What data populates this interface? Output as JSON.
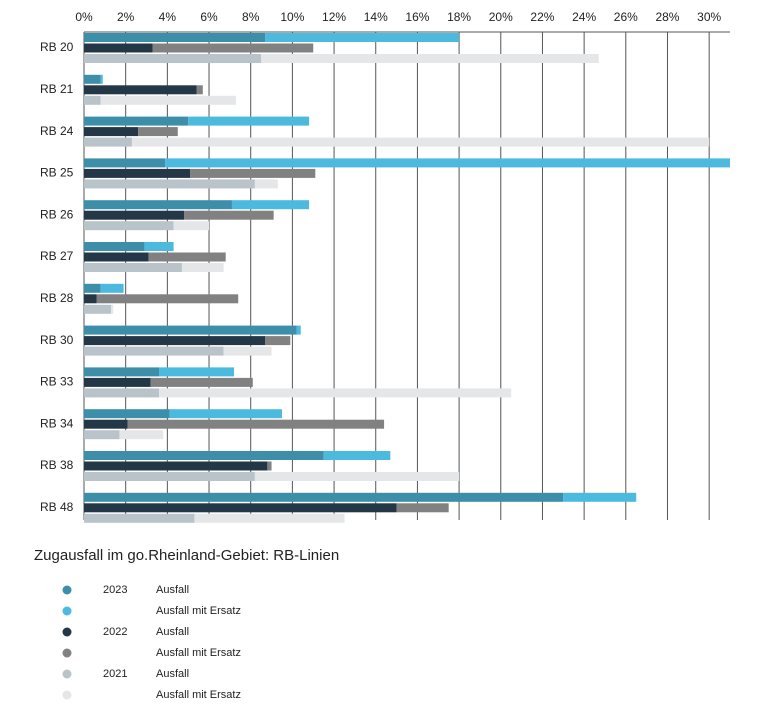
{
  "chart_data": {
    "type": "grouped-stacked-bar",
    "title": "Zugausfall im go.Rheinland-Gebiet: RB-Linien",
    "categories": [
      "RB 20",
      "RB 21",
      "RB 24",
      "RB 25",
      "RB 26",
      "RB 27",
      "RB 28",
      "RB 30",
      "RB 33",
      "RB 34",
      "RB 38",
      "RB 48"
    ],
    "xlim": [
      0,
      31
    ],
    "xticks": [
      {
        "value": 0,
        "label": "0%"
      },
      {
        "value": 2,
        "label": "2%"
      },
      {
        "value": 4,
        "label": "4%"
      },
      {
        "value": 6,
        "label": "6%"
      },
      {
        "value": 8,
        "label": "8%"
      },
      {
        "value": 10,
        "label": "10%"
      },
      {
        "value": 12,
        "label": "12%"
      },
      {
        "value": 14,
        "label": "14%"
      },
      {
        "value": 16,
        "label": "16%"
      },
      {
        "value": 18,
        "label": "18%"
      },
      {
        "value": 20,
        "label": "20%"
      },
      {
        "value": 22,
        "label": "22%"
      },
      {
        "value": 24,
        "label": "24%"
      },
      {
        "value": 26,
        "label": "26%"
      },
      {
        "value": 28,
        "label": "28%"
      },
      {
        "value": 30,
        "label": "30%"
      }
    ],
    "grid": true,
    "groups": [
      {
        "name": "2023",
        "series": [
          {
            "name": "Ausfall",
            "color": "#3d8fa9",
            "values": [
              8.7,
              0.8,
              5.0,
              3.9,
              7.1,
              2.9,
              0.8,
              10.2,
              3.6,
              4.1,
              11.5,
              23.0
            ]
          },
          {
            "name": "Ausfall mit Ersatz",
            "color": "#4cb9df",
            "values": [
              9.3,
              0.1,
              5.8,
              27.1,
              3.7,
              1.4,
              1.1,
              0.2,
              3.6,
              5.4,
              3.2,
              3.5
            ]
          }
        ]
      },
      {
        "name": "2022",
        "series": [
          {
            "name": "Ausfall",
            "color": "#243746",
            "values": [
              3.3,
              5.4,
              2.6,
              5.1,
              4.8,
              3.1,
              0.6,
              8.7,
              3.2,
              2.1,
              8.8,
              15.0
            ]
          },
          {
            "name": "Ausfall mit Ersatz",
            "color": "#818181",
            "values": [
              7.7,
              0.3,
              1.9,
              6.0,
              4.3,
              3.7,
              6.8,
              1.2,
              4.9,
              12.3,
              0.2,
              2.5
            ]
          }
        ]
      },
      {
        "name": "2021",
        "series": [
          {
            "name": "Ausfall",
            "color": "#b9c3ca",
            "values": [
              8.5,
              0.8,
              2.3,
              8.2,
              4.3,
              4.7,
              1.3,
              6.7,
              3.6,
              1.7,
              8.2,
              5.3
            ]
          },
          {
            "name": "Ausfall mit Ersatz",
            "color": "#e4e6e8",
            "values": [
              16.2,
              6.5,
              27.7,
              1.1,
              1.7,
              2.0,
              0.1,
              2.3,
              16.9,
              2.1,
              9.8,
              7.2
            ]
          }
        ]
      }
    ]
  }
}
